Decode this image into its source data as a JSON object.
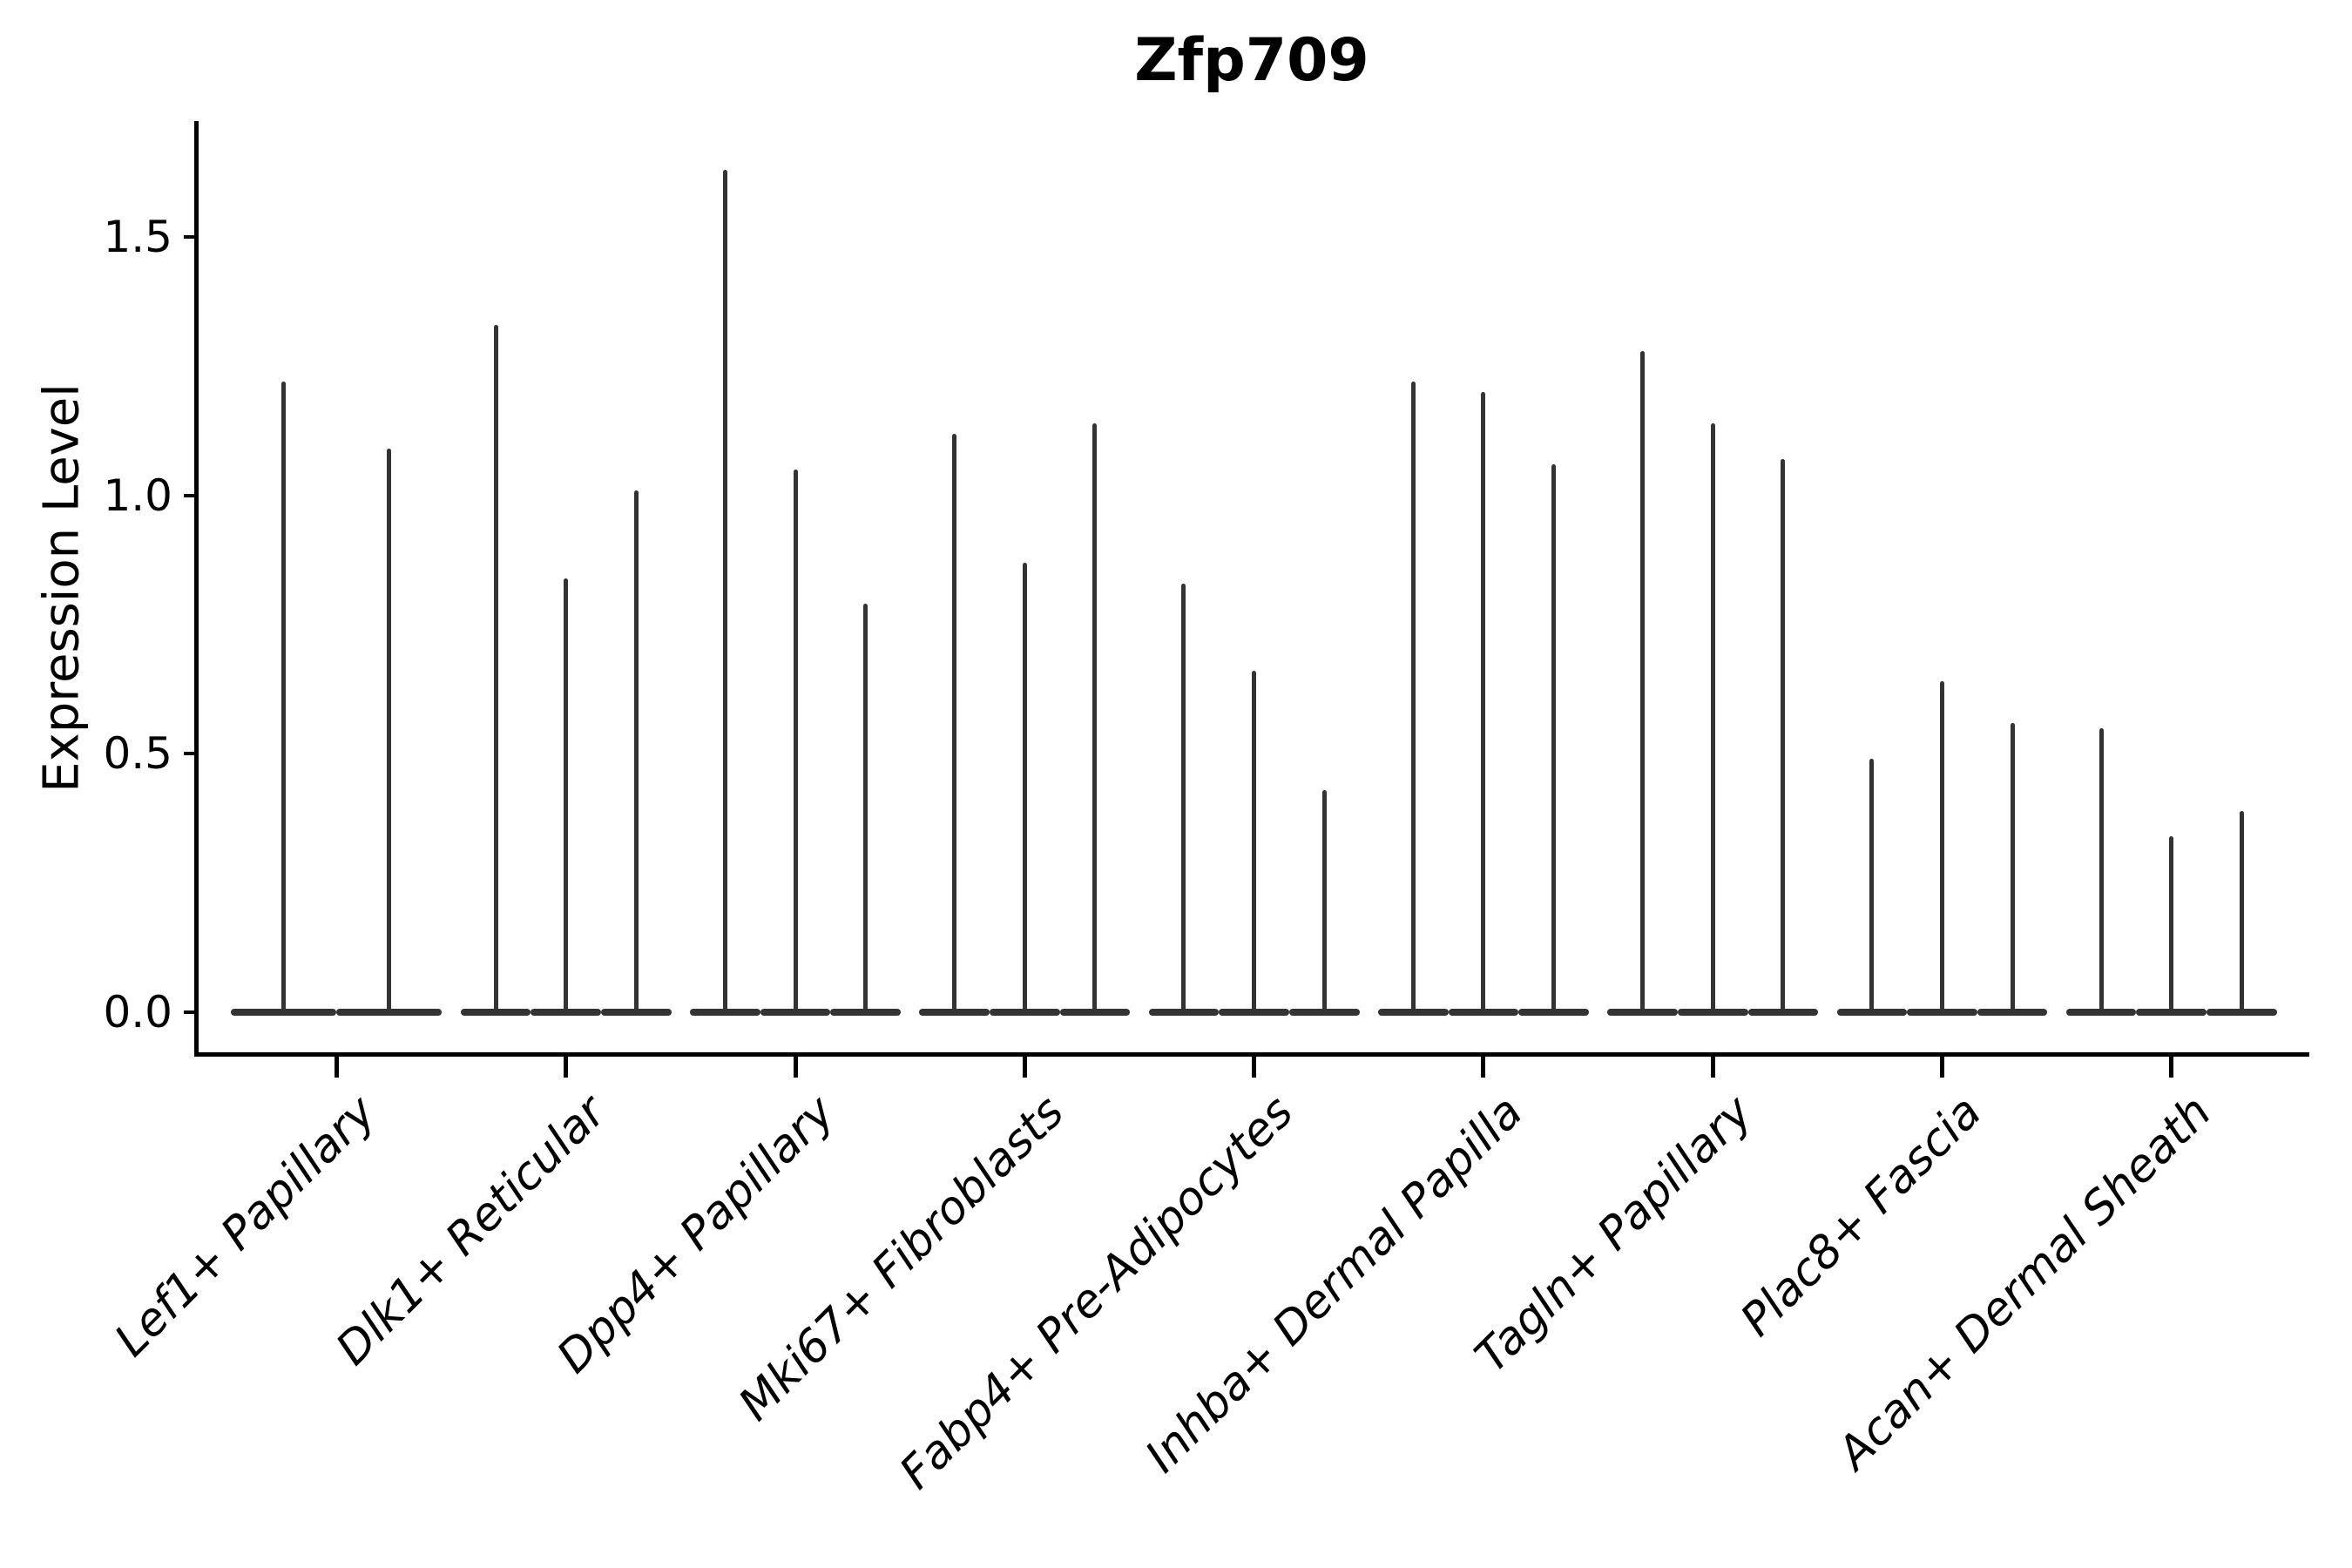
{
  "chart_data": {
    "type": "violin",
    "title": "Zfp709",
    "ylabel": "Expression Level",
    "xlabel": "",
    "yticks": [
      "0.0",
      "0.5",
      "1.0",
      "1.5"
    ],
    "ytick_values": [
      0.0,
      0.5,
      1.0,
      1.5
    ],
    "ylim": [
      -0.08,
      1.72
    ],
    "grid": false,
    "legend": "none",
    "violin_style": "needle (thin spikes with flat wide base at zero expression)",
    "groups": [
      {
        "category": "Lef1+ Papillary",
        "violin_max_values": [
          1.22,
          1.09
        ]
      },
      {
        "category": "Dlk1+ Reticular",
        "violin_max_values": [
          1.33,
          0.84,
          1.01
        ]
      },
      {
        "category": "Dpp4+ Papillary",
        "violin_max_values": [
          1.63,
          1.05,
          0.79
        ]
      },
      {
        "category": "Mki67+ Fibroblasts",
        "violin_max_values": [
          1.12,
          0.87,
          1.14
        ]
      },
      {
        "category": "Fabp4+ Pre-Adipocytes",
        "violin_max_values": [
          0.83,
          0.66,
          0.43
        ]
      },
      {
        "category": "Inhba+ Dermal Papilla",
        "violin_max_values": [
          1.22,
          1.2,
          1.06
        ]
      },
      {
        "category": "Tagln+ Papillary",
        "violin_max_values": [
          1.28,
          1.14,
          1.07
        ]
      },
      {
        "category": "Plac8+ Fascia",
        "violin_max_values": [
          0.49,
          0.64,
          0.56
        ]
      },
      {
        "category": "Acan+ Dermal Sheath",
        "violin_max_values": [
          0.55,
          0.34,
          0.39
        ]
      }
    ],
    "colors": {
      "violin": "#333333",
      "axis": "#000000",
      "text": "#000000",
      "background": "#ffffff"
    }
  }
}
